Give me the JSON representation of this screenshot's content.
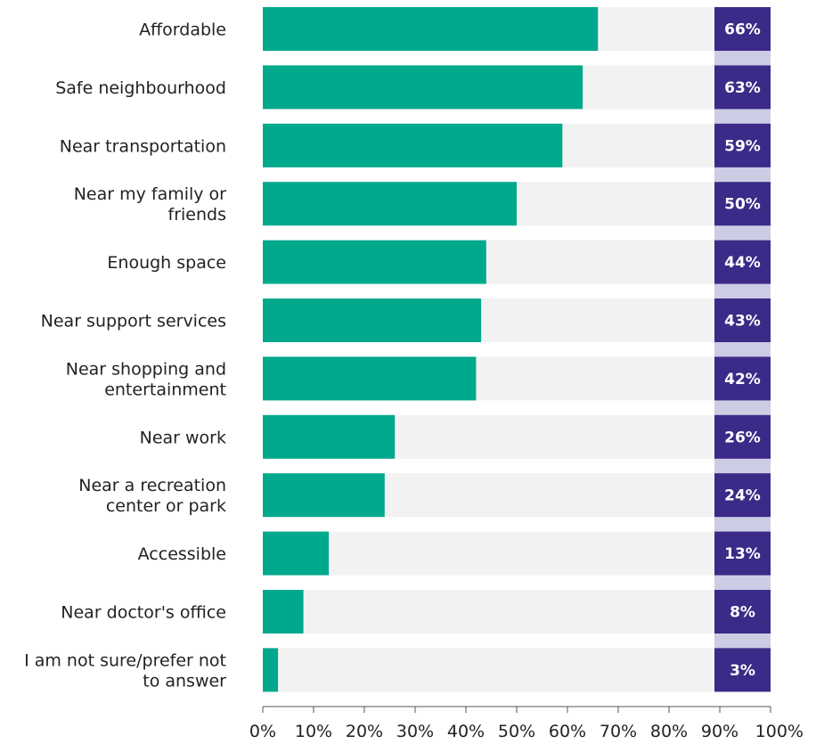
{
  "chart_data": {
    "type": "bar",
    "orientation": "horizontal",
    "categories": [
      [
        "Affordable"
      ],
      [
        "Safe neighbourhood"
      ],
      [
        "Near  transportation"
      ],
      [
        "Near my family or",
        "friends"
      ],
      [
        "Enough space"
      ],
      [
        "Near support services"
      ],
      [
        "Near shopping and",
        "entertainment"
      ],
      [
        "Near work"
      ],
      [
        "Near a recreation",
        "center or park"
      ],
      [
        "Accessible"
      ],
      [
        "Near doctor's office"
      ],
      [
        "I am not sure/prefer not",
        "to answer"
      ]
    ],
    "values": [
      66,
      63,
      59,
      50,
      44,
      43,
      42,
      26,
      24,
      13,
      8,
      3
    ],
    "value_labels": [
      "66%",
      "63%",
      "59%",
      "50%",
      "44%",
      "43%",
      "42%",
      "26%",
      "24%",
      "13%",
      "8%",
      "3%"
    ],
    "xlim": [
      0,
      100
    ],
    "x_ticks": [
      0,
      10,
      20,
      30,
      40,
      50,
      60,
      70,
      80,
      90,
      100
    ],
    "x_tick_labels": [
      "0%",
      "10%",
      "20%",
      "30%",
      "40%",
      "50%",
      "60%",
      "70%",
      "80%",
      "90%",
      "100%"
    ],
    "grid": false,
    "colors": {
      "bar": "#00a88c",
      "track": "#f2f2f2",
      "label_box": "#3b2a87",
      "label_box_stripe": "#cccce4",
      "value_text": "#ffffff",
      "text": "#222222",
      "axis": "#555555"
    }
  }
}
